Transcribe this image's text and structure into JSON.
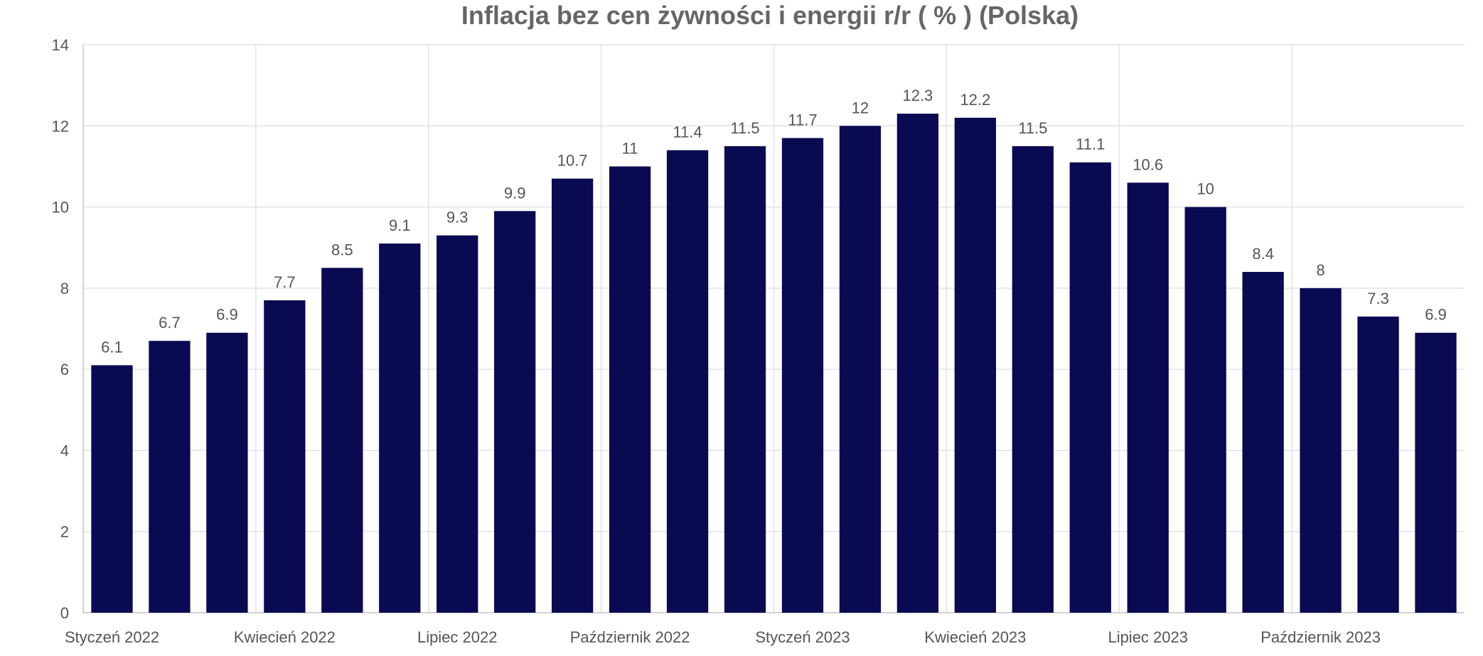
{
  "chart_data": {
    "type": "bar",
    "title": "Inflacja bez cen żywności i energii r/r ( % ) (Polska)",
    "xlabel": "",
    "ylabel": "",
    "ylim": [
      0,
      14
    ],
    "yticks": [
      "0",
      "2",
      "4",
      "6",
      "8",
      "10",
      "12",
      "14"
    ],
    "categories": [
      "2022-01",
      "2022-02",
      "2022-03",
      "2022-04",
      "2022-05",
      "2022-06",
      "2022-07",
      "2022-08",
      "2022-09",
      "2022-10",
      "2022-11",
      "2022-12",
      "2023-01",
      "2023-02",
      "2023-03",
      "2023-04",
      "2023-05",
      "2023-06",
      "2023-07",
      "2023-08",
      "2023-09",
      "2023-10",
      "2023-11",
      "2023-12"
    ],
    "xtick_labels": [
      {
        "index": 0,
        "label": "Styczeń 2022"
      },
      {
        "index": 3,
        "label": "Kwiecień 2022"
      },
      {
        "index": 6,
        "label": "Lipiec 2022"
      },
      {
        "index": 9,
        "label": "Październik 2022"
      },
      {
        "index": 12,
        "label": "Styczeń 2023"
      },
      {
        "index": 15,
        "label": "Kwiecień 2023"
      },
      {
        "index": 18,
        "label": "Lipiec 2023"
      },
      {
        "index": 21,
        "label": "Październik 2023"
      }
    ],
    "values": [
      6.1,
      6.7,
      6.9,
      7.7,
      8.5,
      9.1,
      9.3,
      9.9,
      10.7,
      11,
      11.4,
      11.5,
      11.7,
      12,
      12.3,
      12.2,
      11.5,
      11.1,
      10.6,
      10,
      8.4,
      8,
      7.3,
      6.9
    ],
    "data_labels": [
      "6.1",
      "6.7",
      "6.9",
      "7.7",
      "8.5",
      "9.1",
      "9.3",
      "9.9",
      "10.7",
      "11",
      "11.4",
      "11.5",
      "11.7",
      "12",
      "12.3",
      "12.2",
      "11.5",
      "11.1",
      "10.6",
      "10",
      "8.4",
      "8",
      "7.3",
      "6.9"
    ],
    "bar_color": "#0a0a52",
    "grid": true,
    "legend": "none"
  }
}
